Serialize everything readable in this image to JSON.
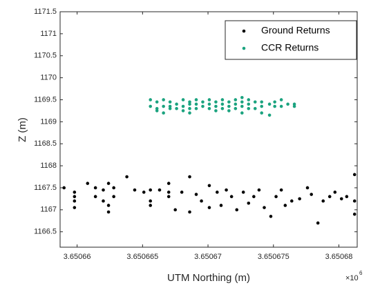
{
  "chart_data": {
    "type": "scatter",
    "x_label": "UTM Northing (m)",
    "y_label": "Z (m)",
    "x_scale_label": {
      "base": "×10",
      "exponent": "6"
    },
    "xlim": [
      3.6506587,
      3.6506814
    ],
    "ylim": [
      1166.15,
      1171.5
    ],
    "xticks": [
      3.65066,
      3.650665,
      3.65067,
      3.650675,
      3.65068
    ],
    "yticks": [
      1166.5,
      1167,
      1167.5,
      1168,
      1168.5,
      1169,
      1169.5,
      1170,
      1170.5,
      1171,
      1171.5
    ],
    "grid": false,
    "legend": "upper right",
    "series": [
      {
        "name": "Ground Returns",
        "color": "#000000",
        "x": [
          3.650659,
          3.6506598,
          3.6506598,
          3.6506598,
          3.6506598,
          3.6506608,
          3.6506614,
          3.6506614,
          3.650662,
          3.650662,
          3.6506624,
          3.6506624,
          3.6506624,
          3.6506628,
          3.6506628,
          3.6506638,
          3.6506644,
          3.6506651,
          3.6506656,
          3.6506656,
          3.6506656,
          3.6506663,
          3.650667,
          3.650667,
          3.650667,
          3.6506675,
          3.650668,
          3.6506686,
          3.6506686,
          3.6506691,
          3.6506695,
          3.6506701,
          3.6506701,
          3.6506707,
          3.650671,
          3.6506714,
          3.6506718,
          3.6506722,
          3.6506727,
          3.6506731,
          3.6506735,
          3.6506739,
          3.6506743,
          3.6506748,
          3.6506752,
          3.6506756,
          3.6506759,
          3.6506764,
          3.650677,
          3.6506776,
          3.6506779,
          3.6506784,
          3.6506788,
          3.6506793,
          3.6506797,
          3.6506802,
          3.6506806,
          3.6506812,
          3.6506812,
          3.6506812
        ],
        "y": [
          1167.5,
          1167.4,
          1167.3,
          1167.05,
          1167.2,
          1167.6,
          1167.5,
          1167.3,
          1167.45,
          1167.2,
          1167.6,
          1167.1,
          1166.95,
          1167.3,
          1167.5,
          1167.75,
          1167.45,
          1167.4,
          1167.45,
          1167.2,
          1167.1,
          1167.45,
          1167.6,
          1167.4,
          1167.3,
          1167.0,
          1167.4,
          1167.75,
          1166.95,
          1167.35,
          1167.2,
          1167.55,
          1167.05,
          1167.4,
          1167.1,
          1167.45,
          1167.3,
          1167.0,
          1167.4,
          1167.15,
          1167.3,
          1167.45,
          1167.05,
          1166.85,
          1167.3,
          1167.45,
          1167.1,
          1167.2,
          1167.25,
          1167.5,
          1167.35,
          1166.7,
          1167.2,
          1167.3,
          1167.4,
          1167.25,
          1167.3,
          1167.8,
          1167.2,
          1166.9
        ]
      },
      {
        "name": "CCR Returns",
        "color": "#1ba37f",
        "x": [
          3.6506656,
          3.6506656,
          3.6506661,
          3.6506661,
          3.6506661,
          3.6506666,
          3.6506666,
          3.6506666,
          3.6506671,
          3.6506671,
          3.6506671,
          3.6506676,
          3.6506676,
          3.6506681,
          3.6506681,
          3.6506681,
          3.6506686,
          3.6506686,
          3.6506686,
          3.6506686,
          3.6506691,
          3.6506691,
          3.6506691,
          3.6506696,
          3.6506696,
          3.6506701,
          3.6506701,
          3.6506701,
          3.6506706,
          3.6506706,
          3.6506706,
          3.6506711,
          3.6506711,
          3.6506711,
          3.6506716,
          3.6506716,
          3.6506716,
          3.6506721,
          3.6506721,
          3.6506721,
          3.6506726,
          3.6506726,
          3.6506726,
          3.6506726,
          3.6506731,
          3.6506731,
          3.6506731,
          3.6506736,
          3.6506736,
          3.6506741,
          3.6506741,
          3.6506741,
          3.6506747,
          3.6506747,
          3.6506751,
          3.6506751,
          3.6506756,
          3.6506756,
          3.6506761,
          3.6506766,
          3.6506766
        ],
        "y": [
          1169.5,
          1169.35,
          1169.45,
          1169.3,
          1169.25,
          1169.5,
          1169.35,
          1169.2,
          1169.45,
          1169.35,
          1169.3,
          1169.4,
          1169.3,
          1169.5,
          1169.35,
          1169.25,
          1169.45,
          1169.4,
          1169.3,
          1169.2,
          1169.5,
          1169.4,
          1169.3,
          1169.45,
          1169.35,
          1169.5,
          1169.4,
          1169.3,
          1169.45,
          1169.35,
          1169.25,
          1169.5,
          1169.4,
          1169.3,
          1169.45,
          1169.35,
          1169.25,
          1169.5,
          1169.4,
          1169.3,
          1169.55,
          1169.45,
          1169.35,
          1169.2,
          1169.5,
          1169.4,
          1169.3,
          1169.45,
          1169.3,
          1169.45,
          1169.35,
          1169.2,
          1169.4,
          1169.15,
          1169.45,
          1169.35,
          1169.5,
          1169.35,
          1169.4,
          1169.4,
          1169.35
        ]
      }
    ]
  }
}
